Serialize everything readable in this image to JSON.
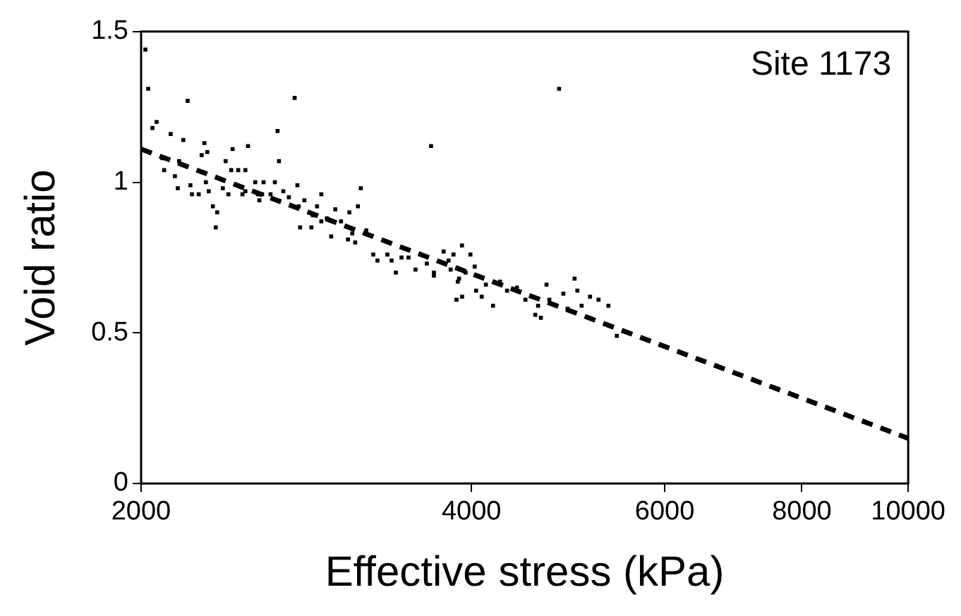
{
  "chart_data": {
    "type": "scatter",
    "xlabel": "Effective stress (kPa)",
    "ylabel": "Void ratio",
    "annotations": [
      "Site 1173"
    ],
    "log": "x",
    "xlim": [
      2000,
      10000
    ],
    "xticks": [
      2000,
      4000,
      6000,
      8000,
      10000
    ],
    "ylim": [
      0,
      1.5
    ],
    "yticks": [
      0,
      0.5,
      1,
      1.5
    ],
    "grid": false,
    "legend": false,
    "series": [
      {
        "type": "scatter",
        "color": "#000000",
        "marker": "square",
        "x": [
          2018,
          2030,
          2048,
          2066,
          2205,
          2760,
          2663,
          2671,
          3675,
          2128,
          2185,
          2284,
          2298,
          2271,
          2423,
          2503,
          2091,
          2166,
          2099,
          2147,
          2160,
          2218,
          2225,
          2257,
          2291,
          2305,
          2325,
          2346,
          2339,
          2374,
          2388,
          2402,
          2416,
          2452,
          2489,
          2489,
          2474,
          2541,
          2556,
          2586,
          2578,
          2648,
          2624,
          2563,
          2776,
          2727,
          2695,
          2784,
          2792,
          2817,
          2859,
          2868,
          2893,
          2919,
          2919,
          2953,
          3006,
          2980,
          3042,
          3096,
          3087,
          3115,
          3152,
          3171,
          3134,
          3208,
          3255,
          3284,
          3353,
          3383,
          3413,
          3454,
          3505,
          3557,
          3642,
          3697,
          4807,
          3773,
          3852,
          3921,
          3991,
          3812,
          3829,
          3897,
          3951,
          4027,
          3697,
          3887,
          3876,
          3922,
          4039,
          4087,
          4185,
          4123,
          4247,
          4310,
          4400,
          4479,
          4573,
          4627,
          4600,
          4682,
          4710,
          4850,
          4893,
          4966,
          4995,
          5040,
          5130,
          5222,
          5331,
          5426
        ],
        "values": [
          1.44,
          1.31,
          1.18,
          1.2,
          1.27,
          1.28,
          1.17,
          1.07,
          1.12,
          1.16,
          1.14,
          1.13,
          1.1,
          1.09,
          1.11,
          1.12,
          1.08,
          1.07,
          1.04,
          1.02,
          0.98,
          0.99,
          0.96,
          0.96,
          1.0,
          0.97,
          0.92,
          0.9,
          0.85,
          0.98,
          1.07,
          0.96,
          1.04,
          1.04,
          1.04,
          0.97,
          0.96,
          1.0,
          0.96,
          1.0,
          0.96,
          1.0,
          0.96,
          0.94,
          0.99,
          0.95,
          0.97,
          0.92,
          0.85,
          0.94,
          0.85,
          0.89,
          0.92,
          0.96,
          0.87,
          0.88,
          0.91,
          0.82,
          0.87,
          0.9,
          0.81,
          0.83,
          0.92,
          0.98,
          0.8,
          0.84,
          0.76,
          0.74,
          0.76,
          0.74,
          0.7,
          0.75,
          0.75,
          0.71,
          0.73,
          0.7,
          1.31,
          0.77,
          0.76,
          0.79,
          0.76,
          0.74,
          0.71,
          0.68,
          0.7,
          0.72,
          0.69,
          0.67,
          0.61,
          0.62,
          0.64,
          0.62,
          0.59,
          0.66,
          0.67,
          0.64,
          0.65,
          0.61,
          0.56,
          0.55,
          0.59,
          0.66,
          0.61,
          0.63,
          0.58,
          0.68,
          0.64,
          0.59,
          0.62,
          0.61,
          0.59,
          0.49
        ]
      },
      {
        "type": "line",
        "color": "#000000",
        "marker": "none",
        "line_style": "dashed",
        "x": [
          2000,
          10000
        ],
        "values": [
          1.11,
          0.15
        ]
      }
    ]
  }
}
